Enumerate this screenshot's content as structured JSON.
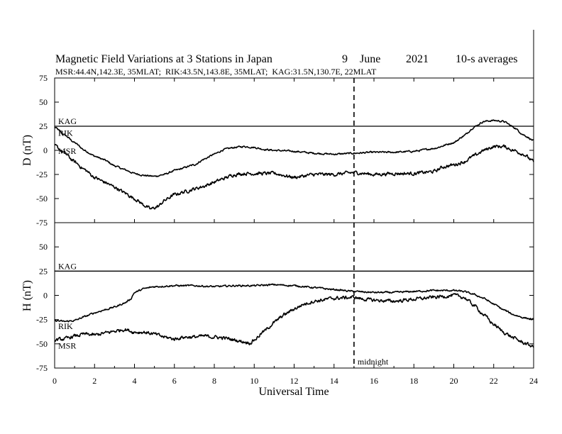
{
  "chart_data": {
    "type": "line",
    "title": "Magnetic Field Variations at 3 Stations in Japan",
    "date": {
      "day": "9",
      "month": "June",
      "year": "2021"
    },
    "averaging": "10-s averages",
    "subtitle": "MSR:44.4N,142.3E, 35MLAT;  RIK:43.5N,143.8E, 35MLAT;  KAG:31.5N,130.7E, 22MLAT",
    "xlabel": "Universal Time",
    "xlim": [
      0,
      24
    ],
    "xticks": [
      "0",
      "2",
      "4",
      "6",
      "8",
      "10",
      "12",
      "14",
      "16",
      "18",
      "20",
      "22",
      "24"
    ],
    "midnight": {
      "x": 15,
      "label": "midnight"
    },
    "panels": [
      {
        "ylabel": "D (nT)",
        "ylim": [
          -75,
          75
        ],
        "yticks": [
          "75",
          "50",
          "25",
          "0",
          "-25",
          "-50",
          "-75"
        ],
        "series": [
          {
            "name": "KAG",
            "points": [
              [
                0,
                25
              ],
              [
                24,
                25
              ]
            ]
          },
          {
            "name": "RIK",
            "points": [
              [
                0,
                24
              ],
              [
                0.5,
                16
              ],
              [
                1,
                8
              ],
              [
                1.5,
                0
              ],
              [
                2,
                -6
              ],
              [
                2.5,
                -10
              ],
              [
                3,
                -16
              ],
              [
                3.5,
                -20
              ],
              [
                4,
                -24
              ],
              [
                4.5,
                -26
              ],
              [
                5,
                -27
              ],
              [
                5.5,
                -25
              ],
              [
                6,
                -21
              ],
              [
                7,
                -15
              ],
              [
                7.5,
                -9
              ],
              [
                8,
                -4
              ],
              [
                8.5,
                1
              ],
              [
                9,
                3
              ],
              [
                9.5,
                4
              ],
              [
                10,
                3
              ],
              [
                10.5,
                1
              ],
              [
                11,
                0
              ],
              [
                12,
                -1
              ],
              [
                13,
                -3
              ],
              [
                14,
                -4
              ],
              [
                15,
                -3
              ],
              [
                16,
                -2
              ],
              [
                17,
                -2
              ],
              [
                18,
                -1
              ],
              [
                19,
                2
              ],
              [
                20,
                8
              ],
              [
                20.5,
                15
              ],
              [
                21,
                24
              ],
              [
                21.5,
                30
              ],
              [
                22,
                31
              ],
              [
                22.5,
                30
              ],
              [
                23,
                24
              ],
              [
                23.5,
                16
              ],
              [
                24,
                10
              ]
            ]
          },
          {
            "name": "MSR",
            "points": [
              [
                0,
                5
              ],
              [
                0.5,
                -3
              ],
              [
                1,
                -12
              ],
              [
                1.5,
                -20
              ],
              [
                2,
                -28
              ],
              [
                2.5,
                -33
              ],
              [
                3,
                -38
              ],
              [
                3.5,
                -44
              ],
              [
                4,
                -50
              ],
              [
                4.5,
                -57
              ],
              [
                4.8,
                -61
              ],
              [
                5.2,
                -58
              ],
              [
                5.5,
                -52
              ],
              [
                6,
                -46
              ],
              [
                6.5,
                -43
              ],
              [
                7,
                -40
              ],
              [
                7.5,
                -37
              ],
              [
                8,
                -33
              ],
              [
                8.5,
                -29
              ],
              [
                9,
                -25
              ],
              [
                9.5,
                -24
              ],
              [
                10,
                -24
              ],
              [
                11,
                -24
              ],
              [
                12,
                -28
              ],
              [
                13,
                -25
              ],
              [
                14,
                -25
              ],
              [
                15,
                -23
              ],
              [
                16,
                -25
              ],
              [
                17,
                -24
              ],
              [
                18,
                -24
              ],
              [
                19,
                -22
              ],
              [
                19.5,
                -17
              ],
              [
                20,
                -15
              ],
              [
                20.5,
                -12
              ],
              [
                21,
                -6
              ],
              [
                21.5,
                0
              ],
              [
                22,
                4
              ],
              [
                22.5,
                4
              ],
              [
                23,
                0
              ],
              [
                23.5,
                -4
              ],
              [
                24,
                -12
              ]
            ]
          }
        ]
      },
      {
        "ylabel": "H (nT)",
        "ylim": [
          -75,
          75
        ],
        "yticks": [
          "75",
          "50",
          "25",
          "0",
          "-25",
          "-50",
          "-75"
        ],
        "series": [
          {
            "name": "KAG",
            "points": [
              [
                0,
                25
              ],
              [
                24,
                25
              ]
            ]
          },
          {
            "name": "RIK",
            "points": [
              [
                0,
                -26
              ],
              [
                0.5,
                -27
              ],
              [
                1,
                -26
              ],
              [
                1.5,
                -22
              ],
              [
                2,
                -18
              ],
              [
                2.5,
                -15
              ],
              [
                3,
                -12
              ],
              [
                3.5,
                -8
              ],
              [
                3.8,
                -4
              ],
              [
                4,
                3
              ],
              [
                4.5,
                7
              ],
              [
                5,
                9
              ],
              [
                6,
                10
              ],
              [
                7,
                10
              ],
              [
                8,
                9
              ],
              [
                9,
                10
              ],
              [
                10,
                10
              ],
              [
                11,
                11
              ],
              [
                12,
                10
              ],
              [
                13,
                8
              ],
              [
                14,
                6
              ],
              [
                15,
                4
              ],
              [
                16,
                3
              ],
              [
                17,
                3
              ],
              [
                18,
                4
              ],
              [
                19,
                5
              ],
              [
                20,
                5
              ],
              [
                20.5,
                4
              ],
              [
                21,
                1
              ],
              [
                21.5,
                -3
              ],
              [
                22,
                -9
              ],
              [
                22.5,
                -15
              ],
              [
                23,
                -20
              ],
              [
                23.5,
                -23
              ],
              [
                24,
                -25
              ]
            ]
          },
          {
            "name": "MSR",
            "points": [
              [
                0,
                -46
              ],
              [
                0.5,
                -45
              ],
              [
                1,
                -42
              ],
              [
                1.5,
                -40
              ],
              [
                2,
                -41
              ],
              [
                2.5,
                -39
              ],
              [
                3,
                -37
              ],
              [
                3.5,
                -35
              ],
              [
                4,
                -38
              ],
              [
                4.5,
                -38
              ],
              [
                5,
                -40
              ],
              [
                5.5,
                -43
              ],
              [
                6,
                -45
              ],
              [
                6.5,
                -43
              ],
              [
                7,
                -43
              ],
              [
                7.5,
                -42
              ],
              [
                8,
                -43
              ],
              [
                8.5,
                -44
              ],
              [
                9,
                -46
              ],
              [
                9.5,
                -48
              ],
              [
                9.8,
                -49
              ],
              [
                10,
                -46
              ],
              [
                10.5,
                -37
              ],
              [
                11,
                -28
              ],
              [
                11.5,
                -20
              ],
              [
                12,
                -14
              ],
              [
                12.5,
                -9
              ],
              [
                13,
                -6
              ],
              [
                14,
                -3
              ],
              [
                15,
                -2
              ],
              [
                15.5,
                -4
              ],
              [
                16,
                -5
              ],
              [
                17,
                -6
              ],
              [
                18,
                -4
              ],
              [
                19,
                -2
              ],
              [
                19.5,
                -1
              ],
              [
                20,
                0
              ],
              [
                20.5,
                -2
              ],
              [
                21,
                -10
              ],
              [
                21.5,
                -20
              ],
              [
                22,
                -30
              ],
              [
                22.5,
                -38
              ],
              [
                23,
                -44
              ],
              [
                23.5,
                -49
              ],
              [
                24,
                -53
              ]
            ]
          }
        ]
      }
    ]
  }
}
